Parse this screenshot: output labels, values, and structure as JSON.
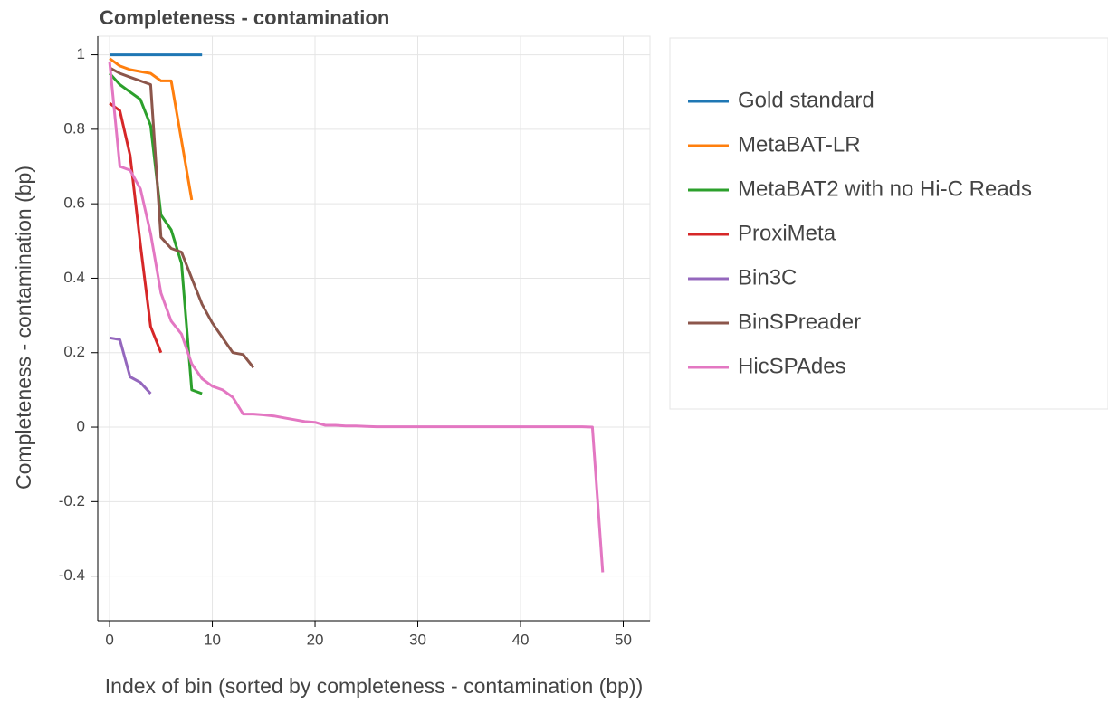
{
  "chart_data": {
    "type": "line",
    "title": "Completeness - contamination",
    "x_label": "Index of bin (sorted by completeness - contamination (bp))",
    "y_label": "Completeness - contamination (bp)",
    "xlim": [
      -1.15,
      52.6
    ],
    "ylim": [
      -0.52,
      1.05
    ],
    "xticks": [
      0,
      10,
      20,
      30,
      40,
      50
    ],
    "yticks": [
      -0.4,
      -0.2,
      0,
      0.2,
      0.4,
      0.6,
      0.8,
      1
    ],
    "grid": true,
    "legend": "right",
    "series": [
      {
        "name": "Gold standard",
        "color": "#1f77b4",
        "values": [
          1,
          1,
          1,
          1,
          1,
          1,
          1,
          1,
          1,
          1
        ]
      },
      {
        "name": "MetaBAT-LR",
        "color": "#ff7f0e",
        "values": [
          0.99,
          0.97,
          0.96,
          0.955,
          0.95,
          0.93,
          0.93,
          0.77,
          0.61
        ]
      },
      {
        "name": "MetaBAT2 with no Hi-C Reads",
        "color": "#2ca02c",
        "values": [
          0.95,
          0.92,
          0.9,
          0.88,
          0.81,
          0.57,
          0.53,
          0.44,
          0.1,
          0.09
        ]
      },
      {
        "name": "ProxiMeta",
        "color": "#d62728",
        "values": [
          0.87,
          0.85,
          0.73,
          0.49,
          0.27,
          0.2
        ]
      },
      {
        "name": "Bin3C",
        "color": "#9467bd",
        "values": [
          0.24,
          0.235,
          0.135,
          0.12,
          0.09
        ]
      },
      {
        "name": "BinSPreader",
        "color": "#8c564b",
        "values": [
          0.965,
          0.95,
          0.94,
          0.93,
          0.92,
          0.51,
          0.48,
          0.47,
          0.4,
          0.33,
          0.28,
          0.24,
          0.2,
          0.195,
          0.16
        ]
      },
      {
        "name": "HicSPAdes",
        "color": "#e377c2",
        "values": [
          0.98,
          0.7,
          0.69,
          0.64,
          0.52,
          0.36,
          0.285,
          0.25,
          0.17,
          0.13,
          0.11,
          0.1,
          0.08,
          0.035,
          0.035,
          0.033,
          0.03,
          0.025,
          0.02,
          0.015,
          0.013,
          0.005,
          0.005,
          0.003,
          0.003,
          0.002,
          0.001,
          0.001,
          0.001,
          0.001,
          0.001,
          0.001,
          0.001,
          0.001,
          0.001,
          0.001,
          0.001,
          0.001,
          0.001,
          0.001,
          0.001,
          0.001,
          0.001,
          0.001,
          0.001,
          0.001,
          0.001,
          0,
          -0.39
        ]
      }
    ]
  }
}
